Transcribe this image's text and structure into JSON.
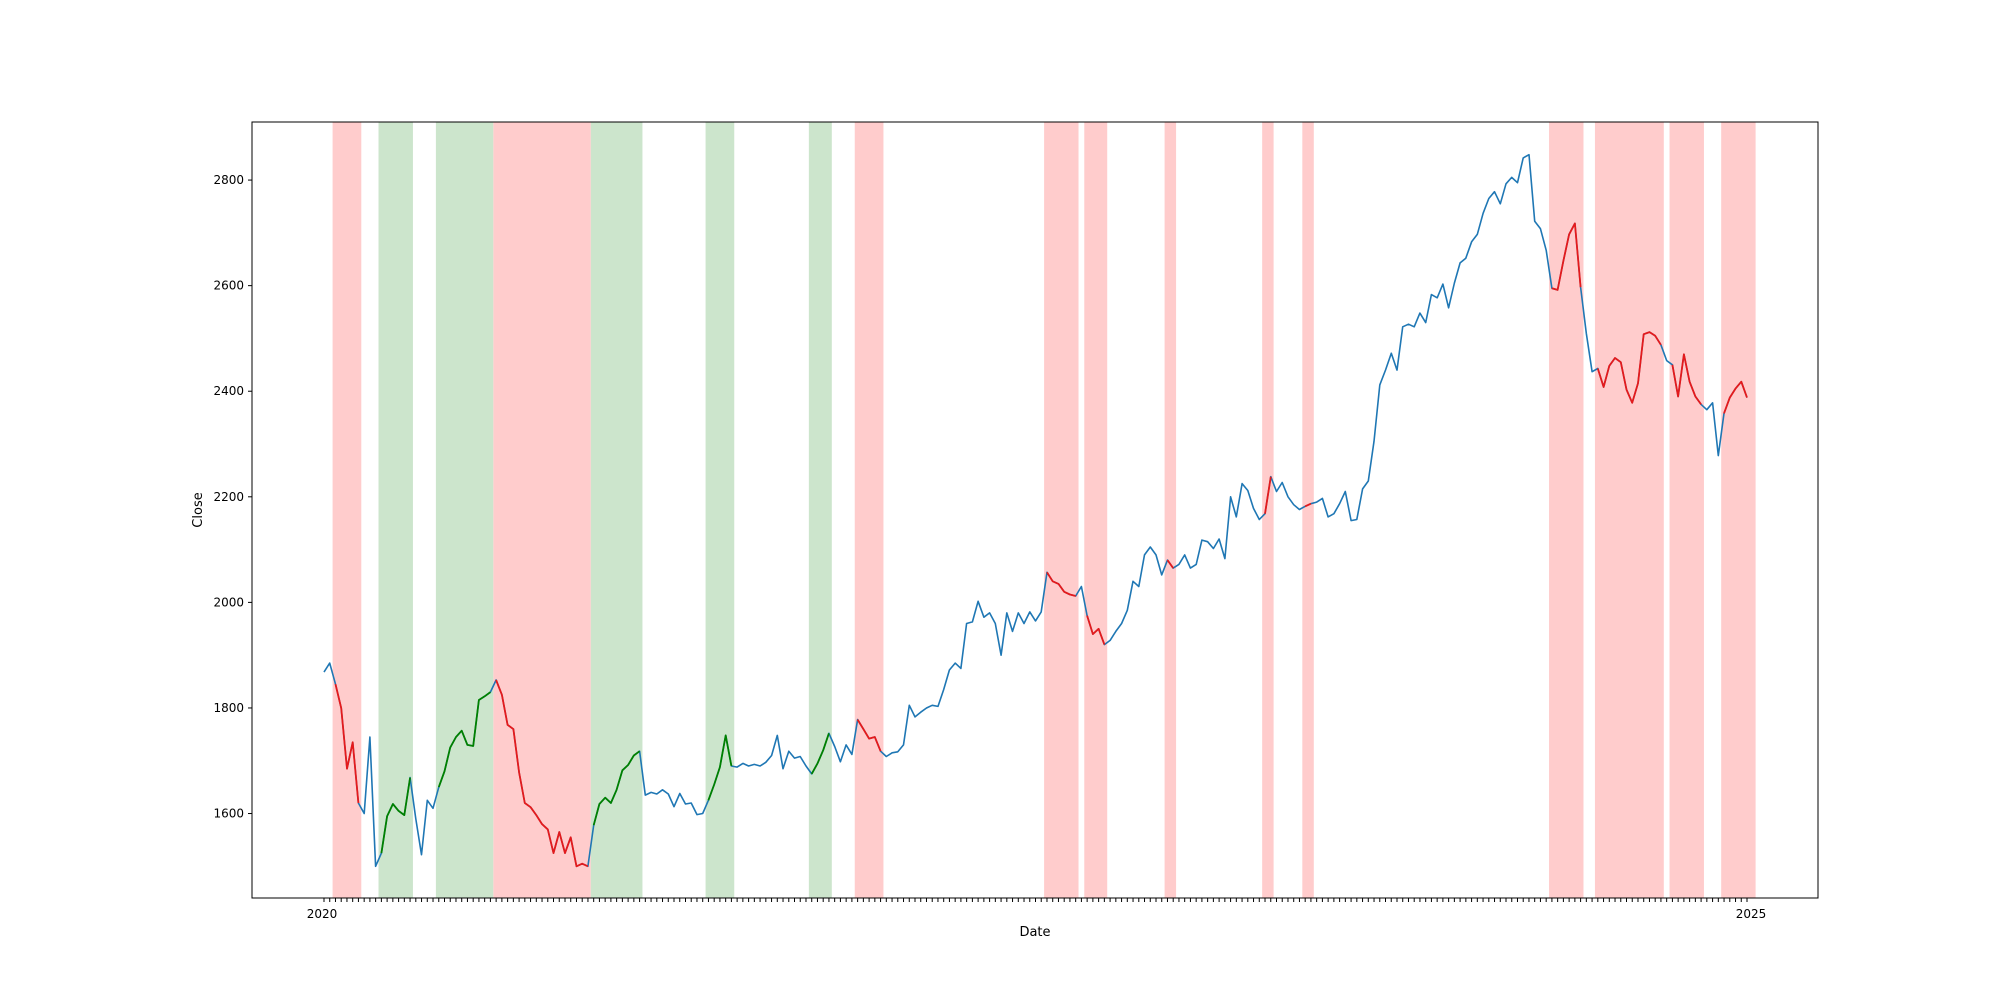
{
  "chart_data": {
    "type": "line",
    "title": "",
    "xlabel": "Date",
    "ylabel": "Close",
    "ylim": [
      1440,
      2910
    ],
    "yticks": [
      1600,
      1800,
      2000,
      2200,
      2400,
      2600,
      2800
    ],
    "grid": false,
    "legend": "none",
    "x_tick_labels": {
      "first": "2020",
      "last": "2025"
    },
    "colors": {
      "line": "#1f77b4",
      "down_segment": "#e41a1c",
      "up_segment": "#008000",
      "down_band": "#ffcccc",
      "up_band": "#cce5cc",
      "frame": "#000000"
    },
    "series": [
      {
        "values": [
          1868,
          1885,
          1845,
          1800,
          1685,
          1735,
          1620,
          1600,
          1745,
          1500,
          1525,
          1595,
          1618,
          1605,
          1597,
          1668,
          1590,
          1522,
          1625,
          1610,
          1650,
          1680,
          1725,
          1745,
          1757,
          1730,
          1728,
          1815,
          1822,
          1830,
          1853,
          1825,
          1768,
          1760,
          1678,
          1620,
          1612,
          1597,
          1580,
          1570,
          1525,
          1565,
          1525,
          1555,
          1500,
          1505,
          1500,
          1578,
          1618,
          1630,
          1620,
          1645,
          1682,
          1692,
          1710,
          1718,
          1635,
          1640,
          1637,
          1645,
          1637,
          1613,
          1638,
          1618,
          1620,
          1598,
          1600,
          1625,
          1655,
          1688,
          1748,
          1690,
          1688,
          1695,
          1690,
          1693,
          1690,
          1697,
          1710,
          1748,
          1685,
          1718,
          1705,
          1708,
          1690,
          1675,
          1695,
          1720,
          1752,
          1727,
          1698,
          1730,
          1712,
          1778,
          1760,
          1742,
          1745,
          1718,
          1708,
          1715,
          1717,
          1730,
          1805,
          1783,
          1792,
          1800,
          1805,
          1803,
          1835,
          1872,
          1885,
          1875,
          1960,
          1963,
          2002,
          1972,
          1980,
          1960,
          1900,
          1980,
          1945,
          1980,
          1960,
          1982,
          1965,
          1982,
          2057,
          2040,
          2035,
          2020,
          2015,
          2012,
          2030,
          1975,
          1940,
          1950,
          1920,
          1928,
          1945,
          1960,
          1985,
          2040,
          2030,
          2090,
          2105,
          2090,
          2052,
          2080,
          2065,
          2072,
          2090,
          2065,
          2072,
          2118,
          2115,
          2102,
          2120,
          2083,
          2200,
          2162,
          2225,
          2212,
          2178,
          2157,
          2168,
          2238,
          2210,
          2227,
          2200,
          2185,
          2176,
          2182,
          2187,
          2190,
          2197,
          2162,
          2168,
          2187,
          2210,
          2155,
          2157,
          2215,
          2230,
          2305,
          2412,
          2440,
          2472,
          2440,
          2522,
          2527,
          2522,
          2548,
          2530,
          2583,
          2577,
          2603,
          2558,
          2605,
          2643,
          2652,
          2683,
          2697,
          2737,
          2765,
          2778,
          2755,
          2793,
          2805,
          2795,
          2842,
          2848,
          2722,
          2708,
          2667,
          2595,
          2592,
          2647,
          2697,
          2718,
          2597,
          2510,
          2437,
          2443,
          2408,
          2448,
          2463,
          2455,
          2403,
          2378,
          2415,
          2508,
          2512,
          2505,
          2488,
          2458,
          2450,
          2390,
          2470,
          2418,
          2390,
          2375,
          2365,
          2378,
          2278,
          2358,
          2388,
          2405,
          2418,
          2388
        ]
      }
    ],
    "down_intervals": [
      [
        2,
        6
      ],
      [
        30,
        46
      ],
      [
        93,
        97
      ],
      [
        126,
        131
      ],
      [
        133,
        136
      ],
      [
        147,
        148
      ],
      [
        164,
        165
      ],
      [
        171,
        172
      ],
      [
        214,
        219
      ],
      [
        222,
        233
      ],
      [
        235,
        240
      ],
      [
        244,
        249
      ]
    ],
    "up_intervals": [
      [
        10,
        15
      ],
      [
        20,
        29
      ],
      [
        47,
        55
      ],
      [
        67,
        71
      ],
      [
        85,
        88
      ]
    ]
  }
}
